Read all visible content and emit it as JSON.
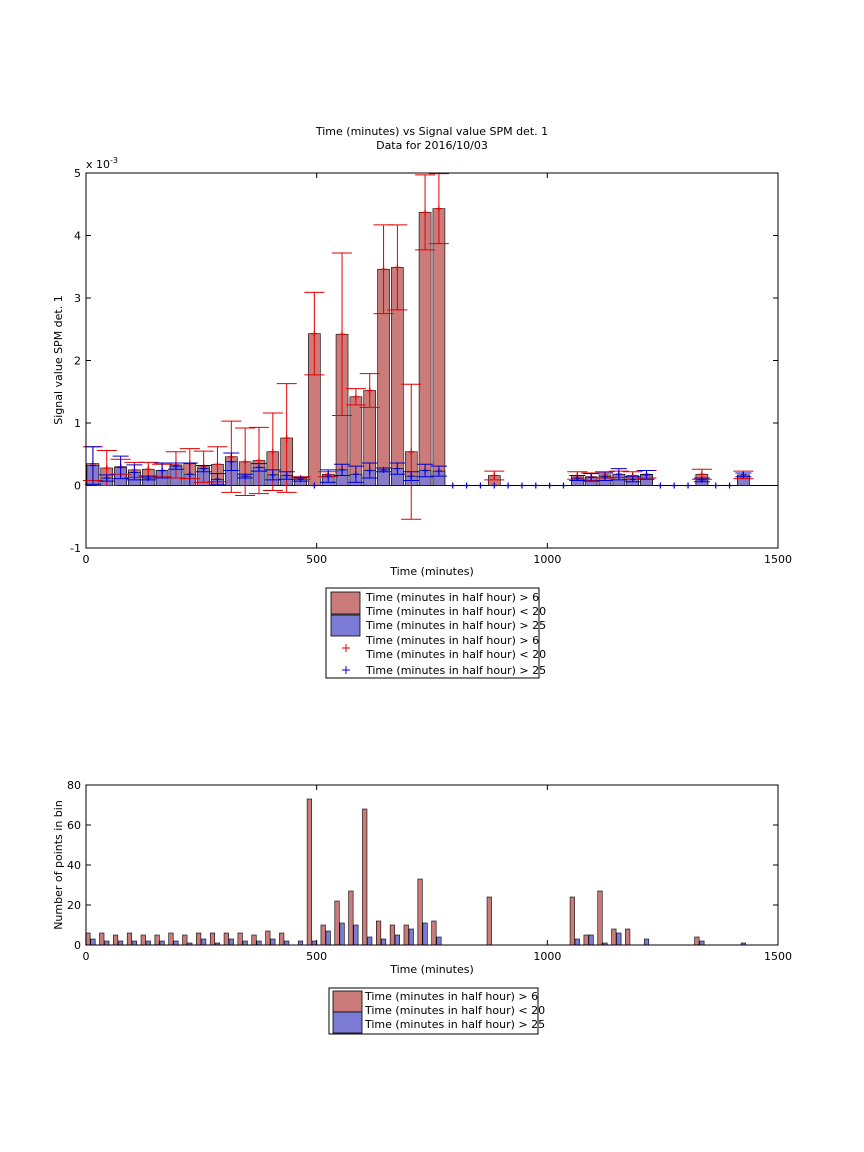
{
  "chart_data": [
    {
      "type": "bar",
      "title": "Time (minutes) vs Signal value SPM det. 1",
      "subtitle": "Data for 2016/10/03",
      "xlabel": "Time (minutes)",
      "ylabel": "Signal value SPM det. 1",
      "y_exponent_label": "x 10",
      "y_exponent": "-3",
      "xlim": [
        0,
        1500
      ],
      "ylim": [
        -1,
        5
      ],
      "xticks": [
        0,
        500,
        1000,
        1500
      ],
      "yticks": [
        -1,
        0,
        1,
        2,
        3,
        4,
        5
      ],
      "grid": false,
      "legend_placement": "below",
      "legend": [
        {
          "label_line1": "Time (minutes in half hour) > 6",
          "label_line2": "Time (minutes in half hour) < 20",
          "style": "bar",
          "color": "#cc7b7b"
        },
        {
          "label_line1": "Time (minutes in half hour) > 25",
          "label_line2": "",
          "style": "bar",
          "color": "#7b7bd6"
        },
        {
          "label_line1": "Time (minutes in half hour) > 6",
          "label_line2": "Time (minutes in half hour) < 20",
          "style": "marker",
          "color": "#e00000"
        },
        {
          "label_line1": "Time (minutes in half hour) > 25",
          "label_line2": "",
          "style": "marker",
          "color": "#0000cc"
        }
      ],
      "series": [
        {
          "color": "#cc7b7b",
          "error_color": "#e00000",
          "x": [
            15,
            45,
            75,
            105,
            135,
            165,
            195,
            225,
            255,
            285,
            315,
            345,
            375,
            405,
            435,
            465,
            495,
            525,
            555,
            585,
            615,
            645,
            675,
            705,
            735,
            765,
            885,
            1065,
            1095,
            1125,
            1155,
            1185,
            1215,
            1335,
            1425
          ],
          "values": [
            0.00035,
            0.00028,
            0.0003,
            0.00025,
            0.00026,
            0.00024,
            0.00033,
            0.00035,
            0.0003,
            0.00034,
            0.00046,
            0.00038,
            0.0004,
            0.00054,
            0.00076,
            0.00012,
            0.00243,
            0.00018,
            0.00242,
            0.00142,
            0.00152,
            0.00346,
            0.00349,
            0.00054,
            0.00437,
            0.00443,
            0.00016,
            0.00016,
            0.00014,
            0.00017,
            0.00018,
            0.00016,
            0.00018,
            0.00018,
            0.00017
          ],
          "err": [
            0.00027,
            0.00028,
            0.00012,
            0.00012,
            0.00011,
            0.0001,
            0.00021,
            0.00024,
            0.00025,
            0.00028,
            0.00057,
            0.00054,
            0.00053,
            0.00062,
            0.00087,
            2e-05,
            0.00066,
            4e-05,
            0.0013,
            0.00013,
            0.00027,
            0.00071,
            0.00068,
            0.00108,
            0.0006,
            0.00056,
            7e-05,
            6e-05,
            6e-05,
            5e-05,
            5e-05,
            6e-05,
            6e-05,
            8e-05,
            6e-05
          ]
        },
        {
          "color": "#7b7bd6",
          "error_color": "#0000cc",
          "x": [
            15,
            45,
            75,
            105,
            135,
            165,
            195,
            225,
            255,
            285,
            315,
            345,
            375,
            405,
            435,
            465,
            495,
            525,
            555,
            585,
            615,
            645,
            675,
            705,
            735,
            765,
            795,
            825,
            855,
            885,
            915,
            945,
            975,
            1005,
            1035,
            1065,
            1095,
            1125,
            1155,
            1185,
            1215,
            1245,
            1275,
            1305,
            1335,
            1365,
            1395,
            1425
          ],
          "values": [
            0.00032,
            0.00012,
            0.00029,
            0.00021,
            0.00012,
            0.00024,
            0.00031,
            0.00018,
            0.00027,
            0.0001,
            0.00038,
            0.00015,
            0.00029,
            0.00017,
            0.00016,
            0.0001,
            0,
            0.00015,
            0.00025,
            0.00018,
            0.00024,
            0.00025,
            0.00027,
            0.00015,
            0.00024,
            0.00023,
            0,
            0,
            0,
            0,
            0,
            0,
            0,
            0,
            0,
            0.00012,
            0.00013,
            0.00014,
            0.00018,
            0.0001,
            0.00017,
            0,
            0,
            0,
            9e-05,
            0,
            0,
            0.00017
          ],
          "err": [
            0.0003,
            5e-05,
            0.00018,
            0.00012,
            3e-05,
            0.00012,
            5e-05,
            0.00018,
            5e-05,
            9e-05,
            0.00014,
            3e-05,
            6e-05,
            8e-05,
            6e-05,
            3e-05,
            0,
            0.0001,
            9e-05,
            0.00013,
            0.00012,
            3e-05,
            9e-05,
            7e-05,
            0.0001,
            8e-05,
            0,
            0,
            0,
            0,
            0,
            0,
            0,
            0,
            0,
            4e-05,
            6e-05,
            6e-05,
            9e-05,
            4e-05,
            7e-05,
            0,
            0,
            0,
            3e-05,
            0,
            0,
            3e-05
          ]
        }
      ]
    },
    {
      "type": "bar",
      "title": "",
      "xlabel": "Time (minutes)",
      "ylabel": "Number of points in bin",
      "xlim": [
        0,
        1500
      ],
      "ylim": [
        0,
        80
      ],
      "xticks": [
        0,
        500,
        1000,
        1500
      ],
      "yticks": [
        0,
        20,
        40,
        60,
        80
      ],
      "grid": false,
      "legend_placement": "below",
      "legend": [
        {
          "label_line1": "Time (minutes in half hour) > 6",
          "label_line2": "Time (minutes in half hour) < 20",
          "style": "bar",
          "color": "#cc7b7b"
        },
        {
          "label_line1": "Time (minutes in half hour) > 25",
          "label_line2": "",
          "style": "bar",
          "color": "#7b7bd6"
        }
      ],
      "series": [
        {
          "color": "#cc7b7b",
          "x": [
            15,
            45,
            75,
            105,
            135,
            165,
            195,
            225,
            255,
            285,
            315,
            345,
            375,
            405,
            435,
            465,
            495,
            525,
            555,
            585,
            615,
            645,
            675,
            705,
            735,
            765,
            885,
            1065,
            1095,
            1125,
            1155,
            1185,
            1215,
            1335,
            1425
          ],
          "values": [
            6,
            6,
            5,
            6,
            5,
            5,
            6,
            5,
            6,
            6,
            6,
            6,
            5,
            7,
            6,
            0,
            73,
            10,
            22,
            27,
            68,
            12,
            10,
            10,
            33,
            12,
            24,
            24,
            5,
            27,
            8,
            8,
            0,
            4,
            0
          ]
        },
        {
          "color": "#7b7bd6",
          "x": [
            15,
            45,
            75,
            105,
            135,
            165,
            195,
            225,
            255,
            285,
            315,
            345,
            375,
            405,
            435,
            465,
            495,
            525,
            555,
            585,
            615,
            645,
            675,
            705,
            735,
            765,
            1065,
            1095,
            1125,
            1155,
            1185,
            1215,
            1335,
            1425
          ],
          "values": [
            3,
            2,
            2,
            2,
            2,
            2,
            2,
            1,
            3,
            1,
            3,
            2,
            2,
            3,
            2,
            2,
            2,
            7,
            11,
            10,
            4,
            3,
            5,
            8,
            11,
            4,
            3,
            5,
            1,
            6,
            0,
            3,
            2,
            1
          ]
        }
      ]
    }
  ]
}
